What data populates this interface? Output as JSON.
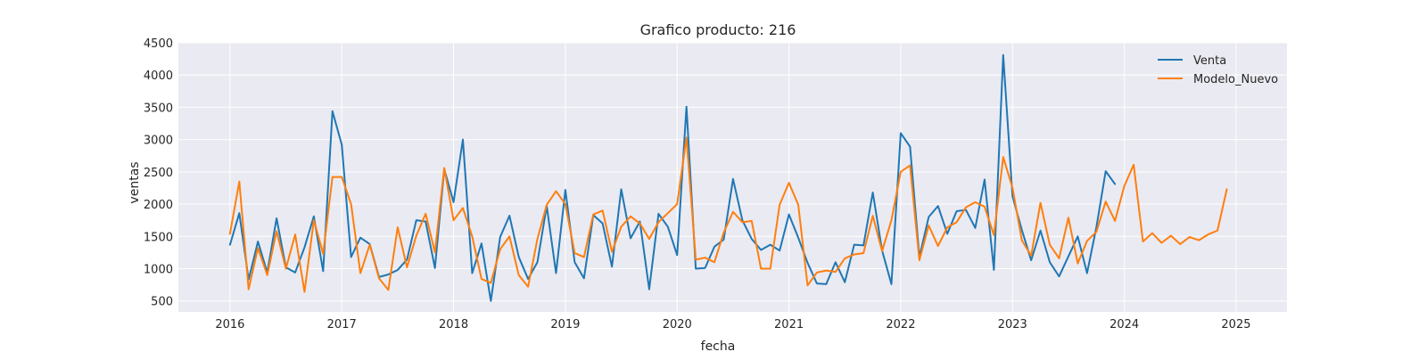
{
  "chart_data": {
    "type": "line",
    "title": "Grafico producto: 216",
    "xlabel": "fecha",
    "ylabel": "ventas",
    "xlim": [
      "2015-07-15",
      "2025-06-15"
    ],
    "ylim": [
      330,
      4500
    ],
    "x_ticks": [
      "2016",
      "2017",
      "2018",
      "2019",
      "2020",
      "2021",
      "2022",
      "2023",
      "2024",
      "2025"
    ],
    "y_ticks": [
      500,
      1000,
      1500,
      2000,
      2500,
      3000,
      3500,
      4000,
      4500
    ],
    "grid": true,
    "legend_position": "top-right",
    "series": [
      {
        "name": "Venta",
        "color": "#1f77b4",
        "start": "2016-01",
        "frequency": "monthly",
        "values": [
          1370,
          1860,
          830,
          1420,
          940,
          1780,
          1020,
          940,
          1330,
          1810,
          960,
          3440,
          2920,
          1180,
          1480,
          1380,
          870,
          910,
          980,
          1140,
          1750,
          1730,
          1010,
          2540,
          2030,
          3000,
          930,
          1390,
          500,
          1490,
          1820,
          1180,
          840,
          1100,
          1970,
          930,
          2220,
          1100,
          850,
          1830,
          1700,
          1030,
          2230,
          1470,
          1730,
          680,
          1850,
          1650,
          1210,
          3510,
          1000,
          1010,
          1340,
          1450,
          2390,
          1750,
          1460,
          1290,
          1370,
          1280,
          1840,
          1480,
          1090,
          770,
          760,
          1100,
          790,
          1370,
          1360,
          2180,
          1280,
          760,
          3100,
          2890,
          1180,
          1800,
          1970,
          1540,
          1890,
          1910,
          1630,
          2380,
          980,
          4310,
          2120,
          1600,
          1130,
          1590,
          1100,
          880,
          1190,
          1500,
          930,
          1640,
          2510,
          2310
        ]
      },
      {
        "name": "Modelo_Nuevo",
        "color": "#ff7f0e",
        "start": "2016-01",
        "frequency": "monthly",
        "values": [
          1540,
          2350,
          680,
          1320,
          900,
          1580,
          1000,
          1530,
          640,
          1750,
          1230,
          2420,
          2420,
          2000,
          930,
          1370,
          850,
          670,
          1640,
          1020,
          1510,
          1850,
          1250,
          2560,
          1750,
          1940,
          1500,
          840,
          780,
          1300,
          1500,
          900,
          720,
          1460,
          1990,
          2200,
          2000,
          1240,
          1180,
          1840,
          1900,
          1260,
          1650,
          1810,
          1700,
          1460,
          1720,
          1860,
          2000,
          3030,
          1140,
          1170,
          1100,
          1560,
          1880,
          1720,
          1740,
          1000,
          1000,
          1990,
          2330,
          1990,
          740,
          940,
          970,
          950,
          1160,
          1220,
          1240,
          1820,
          1270,
          1750,
          2500,
          2600,
          1130,
          1670,
          1350,
          1640,
          1720,
          1950,
          2030,
          1960,
          1520,
          2730,
          2250,
          1440,
          1200,
          2020,
          1370,
          1160,
          1790,
          1080,
          1430,
          1570,
          2040,
          1740,
          2280,
          2610,
          1420,
          1550,
          1400,
          1510,
          1380,
          1490,
          1440,
          1530,
          1590,
          2230
        ]
      }
    ]
  }
}
